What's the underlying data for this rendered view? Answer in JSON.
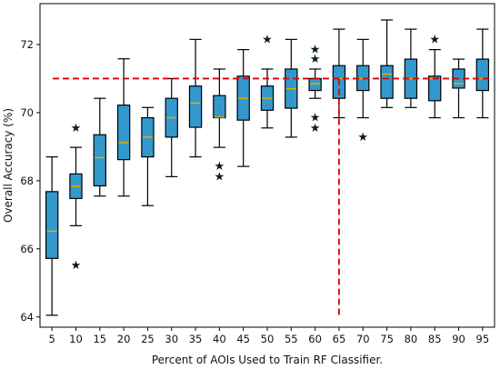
{
  "chart_data": {
    "type": "box",
    "xlabel": "Percent of AOIs Used to Train RF Classifier.",
    "ylabel": "Overall Accuracy (%)",
    "ylim": [
      63.7,
      73.2
    ],
    "yticks": [
      64,
      66,
      68,
      70,
      72
    ],
    "categories": [
      "5",
      "10",
      "15",
      "20",
      "25",
      "30",
      "35",
      "40",
      "45",
      "50",
      "55",
      "60",
      "65",
      "70",
      "75",
      "80",
      "85",
      "90",
      "95"
    ],
    "box_color": "#3399cc",
    "median_color": "#f0a800",
    "reference_color": "#dd0000",
    "boxes": [
      {
        "x": 5,
        "whislo": 64.05,
        "q1": 65.72,
        "med": 66.52,
        "q3": 67.68,
        "whishi": 68.7,
        "fliers": []
      },
      {
        "x": 10,
        "whislo": 66.68,
        "q1": 67.48,
        "med": 67.83,
        "q3": 68.2,
        "whishi": 68.98,
        "fliers": [
          69.55,
          65.52
        ]
      },
      {
        "x": 15,
        "whislo": 67.55,
        "q1": 67.85,
        "med": 68.68,
        "q3": 69.35,
        "whishi": 70.42,
        "fliers": []
      },
      {
        "x": 20,
        "whislo": 67.55,
        "q1": 68.62,
        "med": 69.12,
        "q3": 70.22,
        "whishi": 71.58,
        "fliers": []
      },
      {
        "x": 25,
        "whislo": 67.27,
        "q1": 68.7,
        "med": 69.28,
        "q3": 69.85,
        "whishi": 70.15,
        "fliers": []
      },
      {
        "x": 30,
        "whislo": 68.12,
        "q1": 69.28,
        "med": 69.85,
        "q3": 70.42,
        "whishi": 71.0,
        "fliers": []
      },
      {
        "x": 35,
        "whislo": 68.7,
        "q1": 69.57,
        "med": 70.28,
        "q3": 70.78,
        "whishi": 72.15,
        "fliers": []
      },
      {
        "x": 40,
        "whislo": 68.98,
        "q1": 69.85,
        "med": 69.87,
        "q3": 70.5,
        "whishi": 71.28,
        "fliers": [
          68.42,
          68.12
        ]
      },
      {
        "x": 45,
        "whislo": 68.42,
        "q1": 69.78,
        "med": 70.42,
        "q3": 71.07,
        "whishi": 71.85,
        "fliers": []
      },
      {
        "x": 50,
        "whislo": 69.55,
        "q1": 70.07,
        "med": 70.42,
        "q3": 70.78,
        "whishi": 71.28,
        "fliers": [
          72.15
        ]
      },
      {
        "x": 55,
        "whislo": 69.28,
        "q1": 70.13,
        "med": 70.7,
        "q3": 71.28,
        "whishi": 72.15,
        "fliers": []
      },
      {
        "x": 60,
        "whislo": 70.42,
        "q1": 70.65,
        "med": 70.85,
        "q3": 71.0,
        "whishi": 71.28,
        "fliers": [
          71.85,
          71.57,
          69.85,
          69.55
        ]
      },
      {
        "x": 65,
        "whislo": 69.85,
        "q1": 70.42,
        "med": 71.0,
        "q3": 71.38,
        "whishi": 72.45,
        "fliers": []
      },
      {
        "x": 70,
        "whislo": 69.85,
        "q1": 70.65,
        "med": 71.0,
        "q3": 71.38,
        "whishi": 72.15,
        "fliers": [
          69.28
        ]
      },
      {
        "x": 75,
        "whislo": 70.15,
        "q1": 70.42,
        "med": 71.13,
        "q3": 71.38,
        "whishi": 72.72,
        "fliers": []
      },
      {
        "x": 80,
        "whislo": 70.15,
        "q1": 70.42,
        "med": 71.0,
        "q3": 71.57,
        "whishi": 72.45,
        "fliers": []
      },
      {
        "x": 85,
        "whislo": 69.85,
        "q1": 70.35,
        "med": 71.0,
        "q3": 71.07,
        "whishi": 71.85,
        "fliers": [
          72.15
        ]
      },
      {
        "x": 90,
        "whislo": 69.85,
        "q1": 70.72,
        "med": 70.85,
        "q3": 71.28,
        "whishi": 71.57,
        "fliers": []
      },
      {
        "x": 95,
        "whislo": 69.85,
        "q1": 70.65,
        "med": 71.0,
        "q3": 71.57,
        "whishi": 72.45,
        "fliers": []
      }
    ],
    "reference_lines": [
      {
        "type": "horizontal",
        "y": 71.0
      },
      {
        "type": "vertical",
        "x": "65",
        "ymin": 64.0,
        "ymax": 71.0
      }
    ],
    "grid": false
  }
}
